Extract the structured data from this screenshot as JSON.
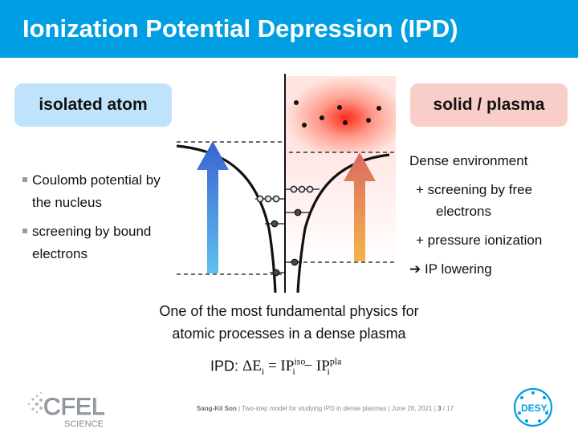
{
  "title": "Ionization Potential Depression (IPD)",
  "left_pill": "isolated atom",
  "right_pill": "solid / plasma",
  "left_bullets": [
    "Coulomb potential by the nucleus",
    "screening by bound electrons"
  ],
  "right_items": {
    "heading": "Dense environment",
    "item1": "+ screening by free",
    "item1b": "electrons",
    "item2": "+ pressure ionization",
    "item3": "➔ IP lowering"
  },
  "center_text": {
    "line1": "One of the most fundamental physics for",
    "line2": "atomic processes in a dense plasma"
  },
  "formula": {
    "label": "IPD:",
    "delta": "ΔE",
    "sub_i": "i",
    "eq": "=",
    "ip": "IP",
    "sup_iso": "iso",
    "minus": "−",
    "sup_pla": "pla"
  },
  "footer": {
    "author": "Sang-Kil Son",
    "talk": "Two-step model for studying IPD in dense plasmas",
    "date": "June 28, 2021",
    "page": "3",
    "total": "/ 17"
  },
  "logos": {
    "left_main": "CFEL",
    "left_sub": "SCIENCE",
    "right": "DESY."
  },
  "colors": {
    "title_bar": "#009fe3",
    "left_pill": "#bfe3fa",
    "right_pill": "#f9cdc8",
    "left_arrow": "#3f6fd0",
    "right_arrow": "#e0705a"
  }
}
